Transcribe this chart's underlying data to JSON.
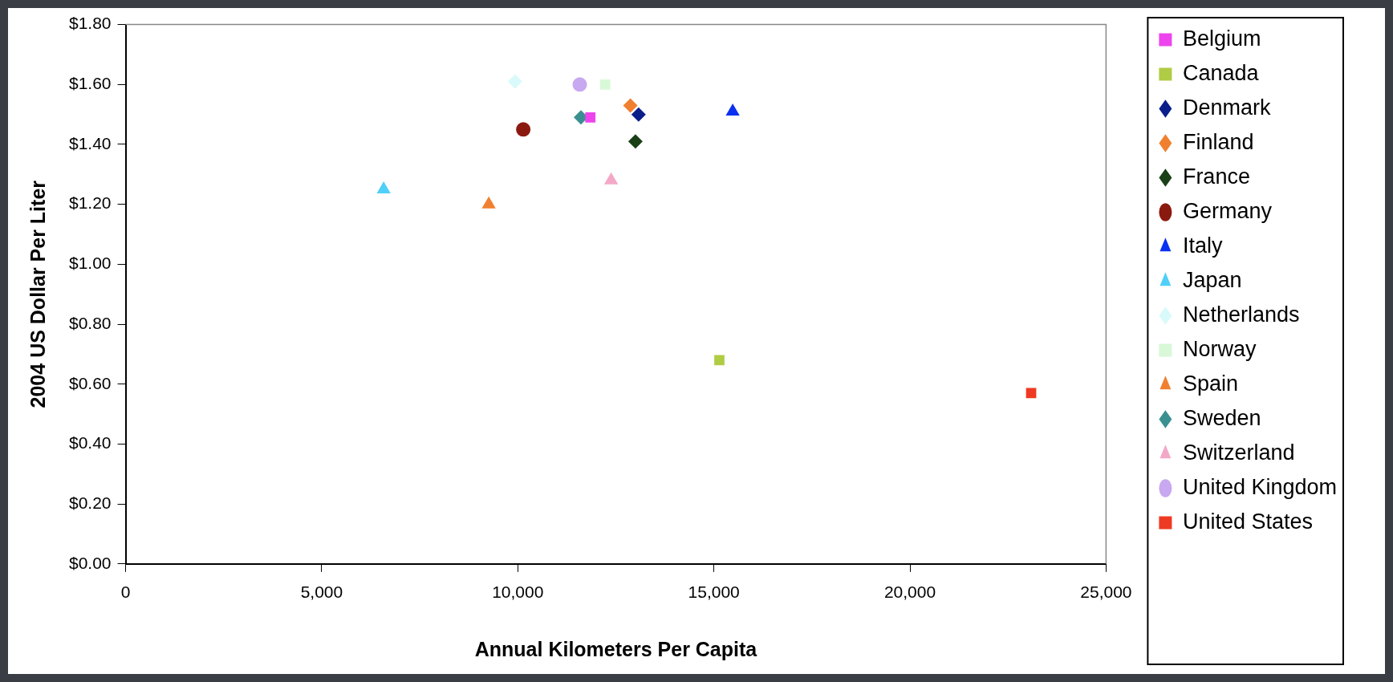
{
  "chart_data": {
    "type": "scatter",
    "xlabel": "Annual Kilometers Per Capita",
    "ylabel": "2004 US Dollar Per Liter",
    "xlim": [
      0,
      25000
    ],
    "xticks": [
      {
        "value": 0,
        "label": "0"
      },
      {
        "value": 5000,
        "label": "5,000"
      },
      {
        "value": 10000,
        "label": "10,000"
      },
      {
        "value": 15000,
        "label": "15,000"
      },
      {
        "value": 20000,
        "label": "20,000"
      },
      {
        "value": 25000,
        "label": "25,000"
      }
    ],
    "ylim": [
      0,
      1.8
    ],
    "yticks": [
      {
        "value": 0,
        "label": "$0.00"
      },
      {
        "value": 0.2,
        "label": "$0.20"
      },
      {
        "value": 0.4,
        "label": "$0.40"
      },
      {
        "value": 0.6,
        "label": "$0.60"
      },
      {
        "value": 0.8,
        "label": "$0.80"
      },
      {
        "value": 1,
        "label": "$1.00"
      },
      {
        "value": 1.2,
        "label": "$1.20"
      },
      {
        "value": 1.4,
        "label": "$1.40"
      },
      {
        "value": 1.6,
        "label": "$1.60"
      },
      {
        "value": 1.8,
        "label": "$1.80"
      }
    ],
    "grid": false,
    "legend": "right",
    "series": [
      {
        "name": "Belgium",
        "color": "#ee44ee",
        "marker": "square",
        "x": [
          11850
        ],
        "values": [
          1.49
        ]
      },
      {
        "name": "Canada",
        "color": "#b0cc44",
        "marker": "square",
        "x": [
          15140
        ],
        "values": [
          0.68
        ]
      },
      {
        "name": "Denmark",
        "color": "#0a1f8a",
        "marker": "diamond",
        "x": [
          13080
        ],
        "values": [
          1.5
        ]
      },
      {
        "name": "Finland",
        "color": "#f08030",
        "marker": "diamond",
        "x": [
          12870
        ],
        "values": [
          1.53
        ]
      },
      {
        "name": "France",
        "color": "#1a4018",
        "marker": "diamond",
        "x": [
          13000
        ],
        "values": [
          1.41
        ]
      },
      {
        "name": "Germany",
        "color": "#8a1a10",
        "marker": "circle",
        "x": [
          10140
        ],
        "values": [
          1.45
        ]
      },
      {
        "name": "Italy",
        "color": "#0a30f0",
        "marker": "triangle",
        "x": [
          15480
        ],
        "values": [
          1.51
        ]
      },
      {
        "name": "Japan",
        "color": "#50d0f8",
        "marker": "triangle",
        "x": [
          6580
        ],
        "values": [
          1.25
        ]
      },
      {
        "name": "Netherlands",
        "color": "#d8fafa",
        "marker": "diamond",
        "x": [
          9930
        ],
        "values": [
          1.61
        ]
      },
      {
        "name": "Norway",
        "color": "#d8f8d8",
        "marker": "square",
        "x": [
          12230
        ],
        "values": [
          1.6
        ]
      },
      {
        "name": "Spain",
        "color": "#f08030",
        "marker": "triangle",
        "x": [
          9260
        ],
        "values": [
          1.2
        ]
      },
      {
        "name": "Sweden",
        "color": "#3a9090",
        "marker": "diamond",
        "x": [
          11610
        ],
        "values": [
          1.49
        ]
      },
      {
        "name": "Switzerland",
        "color": "#f4a8c8",
        "marker": "triangle",
        "x": [
          12380
        ],
        "values": [
          1.28
        ]
      },
      {
        "name": "United Kingdom",
        "color": "#c8a8f0",
        "marker": "circle",
        "x": [
          11580
        ],
        "values": [
          1.6
        ]
      },
      {
        "name": "United States",
        "color": "#ee3a22",
        "marker": "square",
        "x": [
          23090
        ],
        "values": [
          0.57
        ]
      }
    ]
  }
}
